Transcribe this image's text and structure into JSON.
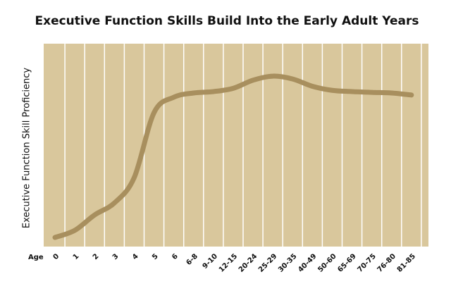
{
  "chart_data": {
    "type": "line",
    "title": "Executive Function Skills Build Into the Early Adult Years",
    "y_label": "Executive Function Skill Proficiency",
    "x_label": "Age",
    "categories": [
      "0",
      "1",
      "2",
      "3",
      "4",
      "5",
      "6",
      "6-8",
      "9-10",
      "12-15",
      "20-24",
      "25-29",
      "30-35",
      "40-49",
      "50-60",
      "65-69",
      "70-75",
      "76-80",
      "81-85"
    ],
    "values": [
      4.5,
      8,
      15.6,
      21.5,
      34,
      66,
      73.6,
      75.7,
      76.4,
      78,
      82,
      84,
      82.6,
      79,
      77,
      76.4,
      76,
      75.7,
      74.7
    ],
    "color": "#a88f5e",
    "ylim": [
      0,
      100
    ]
  }
}
